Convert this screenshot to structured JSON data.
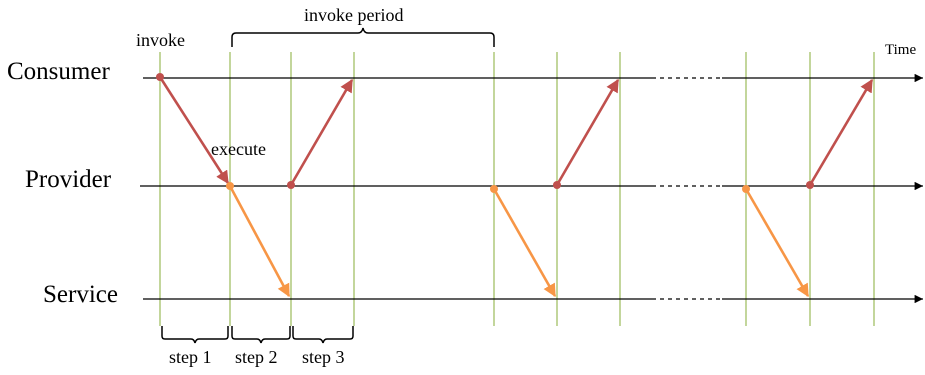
{
  "lanes": {
    "consumer": "Consumer",
    "provider": "Provider",
    "service": "Service"
  },
  "time_label": "Time",
  "annotations": {
    "invoke": "invoke",
    "execute": "execute",
    "invoke_period": "invoke period"
  },
  "steps": [
    "step 1",
    "step 2",
    "step 3"
  ],
  "colors": {
    "invoke_arrow": "#c0504d",
    "service_arrow": "#f79646",
    "guide_line": "#9bbb59",
    "axis": "#000000"
  }
}
